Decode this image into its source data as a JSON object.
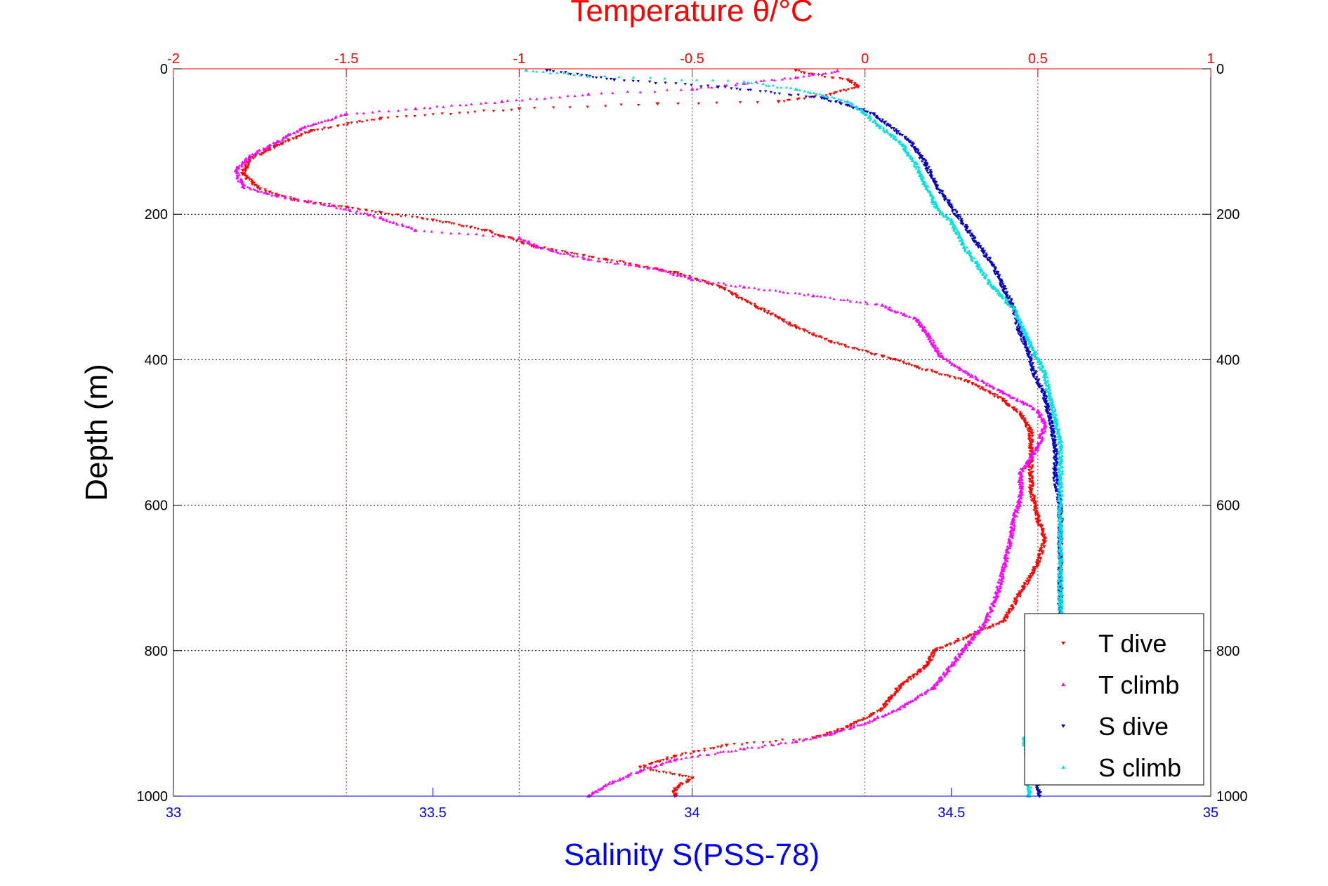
{
  "colors": {
    "t_axis": "#ff0000",
    "s_axis": "#0000ff",
    "grid": "#000000",
    "depth_axis": "#000000",
    "t_dive": "#ff0000",
    "t_climb": "#ff00ff",
    "s_dive": "#0000c0",
    "s_climb": "#00e0e0"
  },
  "legend": {
    "placement": "bottom-right",
    "entries": [
      "T dive",
      "T climb",
      "S dive",
      "S climb"
    ]
  },
  "chart_data": {
    "type": "scatter",
    "title": "Temperature θ/°C",
    "xlabel": "Salinity S(PSS-78)",
    "ylabel": "Depth (m)",
    "x_top": {
      "label": "Temperature θ/°C",
      "lim": [
        -2,
        1
      ],
      "ticks": [
        -2,
        -1.5,
        -1,
        -0.5,
        0,
        0.5,
        1
      ],
      "tick_labels": [
        "-2",
        "-1.5",
        "-1",
        "-0.5",
        "0",
        "0.5",
        "1"
      ]
    },
    "x_bottom": {
      "label": "Salinity S(PSS-78)",
      "lim": [
        33,
        35
      ],
      "ticks": [
        33,
        33.5,
        34,
        34.5,
        35
      ],
      "tick_labels": [
        "33",
        "33.5",
        "34",
        "34.5",
        "35"
      ]
    },
    "y": {
      "label": "Depth (m)",
      "lim": [
        0,
        1000
      ],
      "reversed": true,
      "ticks": [
        0,
        200,
        400,
        600,
        800,
        1000
      ],
      "tick_labels": [
        "0",
        "200",
        "400",
        "600",
        "800",
        "1000"
      ]
    },
    "grid": true,
    "series": [
      {
        "name": "T dive",
        "axis": "temperature",
        "marker": "triangle-down",
        "points": [
          [
            -0.2,
            2
          ],
          [
            -0.15,
            8
          ],
          [
            -0.05,
            15
          ],
          [
            -0.02,
            25
          ],
          [
            -0.1,
            35
          ],
          [
            -0.25,
            45
          ],
          [
            -0.6,
            48
          ],
          [
            -1.0,
            55
          ],
          [
            -1.4,
            68
          ],
          [
            -1.6,
            85
          ],
          [
            -1.7,
            105
          ],
          [
            -1.78,
            125
          ],
          [
            -1.8,
            145
          ],
          [
            -1.75,
            165
          ],
          [
            -1.65,
            180
          ],
          [
            -1.5,
            190
          ],
          [
            -1.4,
            198
          ],
          [
            -1.25,
            208
          ],
          [
            -1.1,
            222
          ],
          [
            -0.95,
            245
          ],
          [
            -0.75,
            262
          ],
          [
            -0.55,
            280
          ],
          [
            -0.42,
            300
          ],
          [
            -0.3,
            330
          ],
          [
            -0.2,
            355
          ],
          [
            -0.1,
            375
          ],
          [
            0.05,
            395
          ],
          [
            0.15,
            410
          ],
          [
            0.3,
            430
          ],
          [
            0.4,
            455
          ],
          [
            0.45,
            475
          ],
          [
            0.48,
            500
          ],
          [
            0.48,
            540
          ],
          [
            0.48,
            580
          ],
          [
            0.5,
            620
          ],
          [
            0.52,
            645
          ],
          [
            0.5,
            680
          ],
          [
            0.45,
            720
          ],
          [
            0.4,
            760
          ],
          [
            0.3,
            780
          ],
          [
            0.2,
            800
          ],
          [
            0.18,
            820
          ],
          [
            0.1,
            850
          ],
          [
            0.05,
            880
          ],
          [
            -0.05,
            905
          ],
          [
            -0.15,
            920
          ],
          [
            -0.4,
            930
          ],
          [
            -0.55,
            945
          ],
          [
            -0.65,
            960
          ],
          [
            -0.5,
            975
          ],
          [
            -0.55,
            990
          ],
          [
            -0.55,
            1000
          ]
        ]
      },
      {
        "name": "T climb",
        "axis": "temperature",
        "marker": "triangle-up",
        "points": [
          [
            -0.08,
            3
          ],
          [
            -0.2,
            12
          ],
          [
            -0.35,
            20
          ],
          [
            -0.5,
            28
          ],
          [
            -0.8,
            35
          ],
          [
            -1.05,
            45
          ],
          [
            -1.3,
            55
          ],
          [
            -1.5,
            62
          ],
          [
            -1.62,
            80
          ],
          [
            -1.7,
            100
          ],
          [
            -1.78,
            120
          ],
          [
            -1.82,
            140
          ],
          [
            -1.8,
            162
          ],
          [
            -1.7,
            175
          ],
          [
            -1.55,
            188
          ],
          [
            -1.4,
            205
          ],
          [
            -1.3,
            222
          ],
          [
            -1.0,
            232
          ],
          [
            -0.95,
            245
          ],
          [
            -0.8,
            262
          ],
          [
            -0.6,
            275
          ],
          [
            -0.5,
            290
          ],
          [
            -0.35,
            300
          ],
          [
            -0.15,
            312
          ],
          [
            0.05,
            325
          ],
          [
            0.15,
            345
          ],
          [
            0.18,
            365
          ],
          [
            0.22,
            395
          ],
          [
            0.3,
            420
          ],
          [
            0.4,
            445
          ],
          [
            0.5,
            470
          ],
          [
            0.52,
            490
          ],
          [
            0.5,
            520
          ],
          [
            0.45,
            555
          ],
          [
            0.45,
            590
          ],
          [
            0.43,
            620
          ],
          [
            0.42,
            650
          ],
          [
            0.4,
            690
          ],
          [
            0.38,
            725
          ],
          [
            0.35,
            760
          ],
          [
            0.3,
            790
          ],
          [
            0.25,
            820
          ],
          [
            0.2,
            850
          ],
          [
            0.1,
            880
          ],
          [
            0.0,
            900
          ],
          [
            -0.1,
            915
          ],
          [
            -0.2,
            925
          ],
          [
            -0.35,
            935
          ],
          [
            -0.55,
            950
          ],
          [
            -0.65,
            965
          ],
          [
            -0.75,
            985
          ],
          [
            -0.8,
            1000
          ]
        ]
      },
      {
        "name": "S dive",
        "axis": "salinity",
        "marker": "triangle-down",
        "points": [
          [
            33.72,
            2
          ],
          [
            33.85,
            15
          ],
          [
            34.05,
            25
          ],
          [
            34.25,
            40
          ],
          [
            34.3,
            50
          ],
          [
            34.35,
            62
          ],
          [
            34.38,
            78
          ],
          [
            34.42,
            100
          ],
          [
            34.45,
            130
          ],
          [
            34.47,
            160
          ],
          [
            34.5,
            190
          ],
          [
            34.52,
            210
          ],
          [
            34.55,
            240
          ],
          [
            34.58,
            270
          ],
          [
            34.6,
            300
          ],
          [
            34.62,
            330
          ],
          [
            34.63,
            360
          ],
          [
            34.65,
            390
          ],
          [
            34.66,
            420
          ],
          [
            34.68,
            450
          ],
          [
            34.69,
            480
          ],
          [
            34.7,
            520
          ],
          [
            34.7,
            560
          ],
          [
            34.71,
            600
          ],
          [
            34.71,
            640
          ],
          [
            34.71,
            680
          ],
          [
            34.71,
            720
          ],
          [
            34.71,
            760
          ],
          [
            34.65,
            920
          ],
          [
            34.66,
            960
          ],
          [
            34.67,
            1000
          ]
        ]
      },
      {
        "name": "S climb",
        "axis": "salinity",
        "marker": "triangle-up",
        "points": [
          [
            33.68,
            2
          ],
          [
            33.8,
            10
          ],
          [
            34.1,
            18
          ],
          [
            34.2,
            28
          ],
          [
            34.3,
            45
          ],
          [
            34.33,
            60
          ],
          [
            34.36,
            78
          ],
          [
            34.4,
            100
          ],
          [
            34.43,
            130
          ],
          [
            34.45,
            160
          ],
          [
            34.47,
            190
          ],
          [
            34.5,
            210
          ],
          [
            34.52,
            240
          ],
          [
            34.55,
            270
          ],
          [
            34.58,
            300
          ],
          [
            34.62,
            330
          ],
          [
            34.64,
            360
          ],
          [
            34.66,
            390
          ],
          [
            34.68,
            420
          ],
          [
            34.69,
            450
          ],
          [
            34.7,
            480
          ],
          [
            34.71,
            520
          ],
          [
            34.71,
            560
          ],
          [
            34.71,
            600
          ],
          [
            34.71,
            640
          ],
          [
            34.71,
            680
          ],
          [
            34.71,
            720
          ],
          [
            34.71,
            760
          ],
          [
            34.64,
            920
          ],
          [
            34.65,
            960
          ],
          [
            34.65,
            1000
          ]
        ]
      }
    ]
  }
}
